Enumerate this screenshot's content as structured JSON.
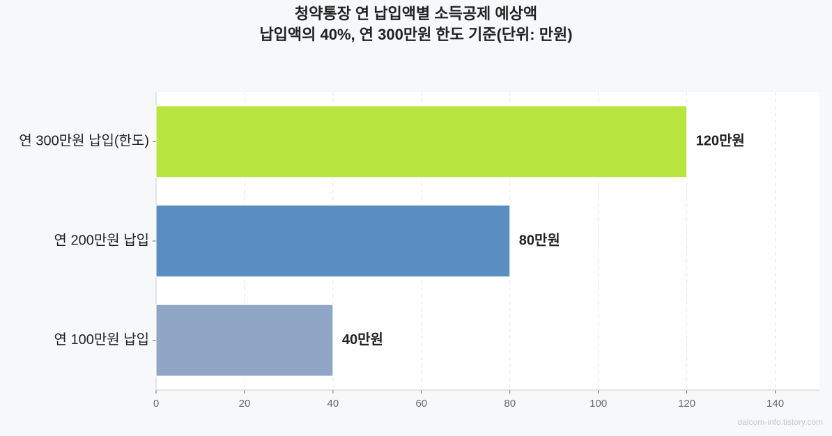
{
  "chart_data": {
    "type": "barh",
    "title": "청약통장 연 납입액별 소득공제 예상액",
    "subtitle": "납입액의 40%, 연 300만원 한도 기준(단위: 만원)",
    "categories": [
      "연 300만원 납입(한도)",
      "연 200만원 납입",
      "연 100만원 납입"
    ],
    "values": [
      120,
      80,
      40
    ],
    "value_labels": [
      "120만원",
      "80만원",
      "40만원"
    ],
    "colors": [
      "#b8e540",
      "#5b8ec0",
      "#8fa6c6"
    ],
    "xlim": [
      0,
      150
    ],
    "xticks": [
      0,
      20,
      40,
      60,
      80,
      100,
      120,
      140
    ],
    "grid": true,
    "watermark": "dalcom-info.tistory.com"
  }
}
